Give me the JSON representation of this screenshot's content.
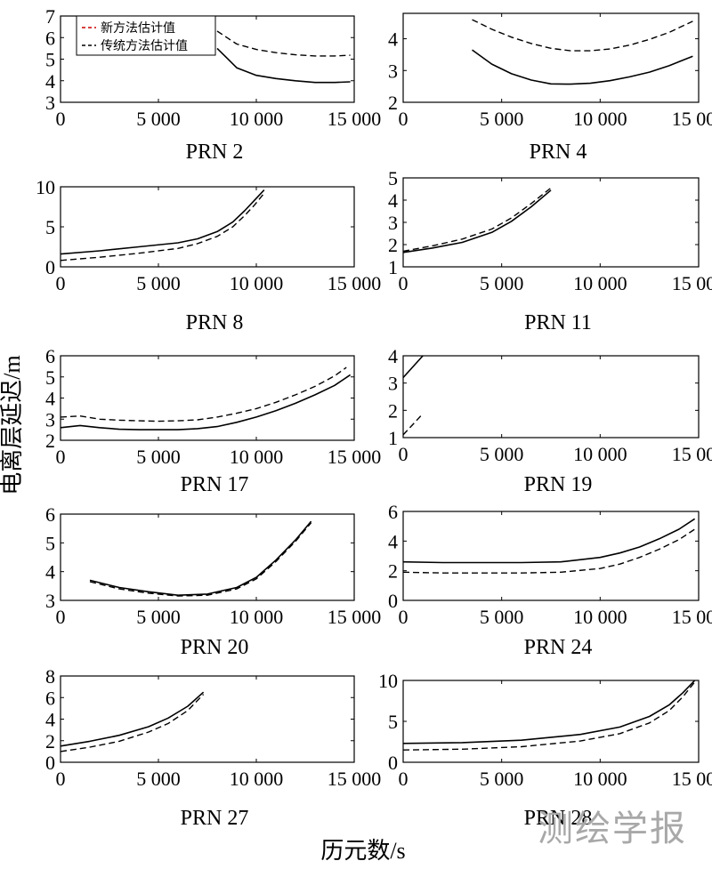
{
  "figure": {
    "ylabel": "电离层延迟/m",
    "xlabel": "历元数/s",
    "watermark": "测绘学报"
  },
  "legend": {
    "items": [
      {
        "label": "新方法估计值",
        "color": "#cc0000",
        "dash": "dashed"
      },
      {
        "label": "传统方法估计值",
        "color": "#000000",
        "dash": "dashed"
      }
    ]
  },
  "chart_data": [
    {
      "type": "line",
      "title": "PRN 2",
      "xlim": [
        0,
        15000
      ],
      "ylim": [
        3,
        7
      ],
      "xticks": [
        0,
        5000,
        10000,
        15000
      ],
      "xtick_labels": [
        "0",
        "5 000",
        "10 000",
        "15 000"
      ],
      "yticks": [
        3,
        4,
        5,
        6,
        7
      ],
      "ytick_labels": [
        "3",
        "4",
        "5",
        "6",
        "7"
      ],
      "legend": true,
      "series": [
        {
          "name": "新方法估计值",
          "style": "solid",
          "x": [
            8000,
            9000,
            10000,
            11000,
            12000,
            13000,
            14000,
            14800
          ],
          "y": [
            5.5,
            4.6,
            4.25,
            4.1,
            4.0,
            3.92,
            3.92,
            3.95
          ]
        },
        {
          "name": "传统方法估计值",
          "style": "dashed",
          "x": [
            8000,
            9000,
            10000,
            11000,
            12000,
            13000,
            14000,
            14800
          ],
          "y": [
            6.3,
            5.7,
            5.45,
            5.3,
            5.2,
            5.15,
            5.15,
            5.18
          ]
        }
      ]
    },
    {
      "type": "line",
      "title": "PRN 4",
      "xlim": [
        0,
        15000
      ],
      "ylim": [
        2,
        4.8
      ],
      "xticks": [
        0,
        5000,
        10000,
        15000
      ],
      "xtick_labels": [
        "0",
        "5 000",
        "10 000",
        "15 000"
      ],
      "yticks": [
        2,
        3,
        4
      ],
      "ytick_labels": [
        "2",
        "3",
        "4"
      ],
      "legend": false,
      "series": [
        {
          "name": "新方法估计值",
          "style": "solid",
          "x": [
            3500,
            4500,
            5500,
            6500,
            7500,
            8500,
            9500,
            10500,
            11500,
            12500,
            13500,
            14700
          ],
          "y": [
            3.65,
            3.2,
            2.9,
            2.7,
            2.58,
            2.57,
            2.6,
            2.68,
            2.8,
            2.95,
            3.15,
            3.45
          ]
        },
        {
          "name": "传统方法估计值",
          "style": "dashed",
          "x": [
            3500,
            4500,
            5500,
            6500,
            7500,
            8500,
            9500,
            10500,
            11500,
            12500,
            13500,
            14700
          ],
          "y": [
            4.6,
            4.3,
            4.05,
            3.85,
            3.7,
            3.62,
            3.62,
            3.68,
            3.8,
            3.98,
            4.2,
            4.55
          ]
        }
      ]
    },
    {
      "type": "line",
      "title": "PRN 8",
      "xlim": [
        0,
        15000
      ],
      "ylim": [
        0,
        10
      ],
      "xticks": [
        0,
        5000,
        10000,
        15000
      ],
      "xtick_labels": [
        "0",
        "5 000",
        "10 000",
        "15 000"
      ],
      "yticks": [
        0,
        5,
        10
      ],
      "ytick_labels": [
        "0",
        "5",
        "10"
      ],
      "legend": false,
      "series": [
        {
          "name": "新方法估计值",
          "style": "solid",
          "x": [
            0,
            2000,
            4000,
            6000,
            7000,
            8000,
            8800,
            9400,
            9900,
            10400
          ],
          "y": [
            1.6,
            2.0,
            2.5,
            3.0,
            3.5,
            4.4,
            5.6,
            7.0,
            8.3,
            9.6
          ]
        },
        {
          "name": "传统方法估计值",
          "style": "dashed",
          "x": [
            0,
            2000,
            4000,
            6000,
            7000,
            8000,
            8800,
            9400,
            9900,
            10400
          ],
          "y": [
            0.8,
            1.2,
            1.7,
            2.3,
            2.9,
            3.8,
            5.0,
            6.4,
            7.7,
            9.2
          ]
        }
      ]
    },
    {
      "type": "line",
      "title": "PRN 11",
      "xlim": [
        0,
        15000
      ],
      "ylim": [
        1,
        5
      ],
      "xticks": [
        0,
        5000,
        10000,
        15000
      ],
      "xtick_labels": [
        "0",
        "5 000",
        "10 000",
        "15 000"
      ],
      "yticks": [
        1,
        2,
        3,
        4,
        5
      ],
      "ytick_labels": [
        "1",
        "2",
        "3",
        "4",
        "5"
      ],
      "legend": false,
      "series": [
        {
          "name": "新方法估计值",
          "style": "solid",
          "x": [
            0,
            1500,
            3000,
            4500,
            5500,
            6500,
            7500
          ],
          "y": [
            1.65,
            1.85,
            2.1,
            2.55,
            3.05,
            3.7,
            4.45
          ]
        },
        {
          "name": "传统方法估计值",
          "style": "dashed",
          "x": [
            0,
            1500,
            3000,
            4500,
            5500,
            6500,
            7500
          ],
          "y": [
            1.7,
            1.95,
            2.25,
            2.7,
            3.2,
            3.85,
            4.55
          ]
        }
      ]
    },
    {
      "type": "line",
      "title": "PRN 17",
      "xlim": [
        0,
        15000
      ],
      "ylim": [
        2,
        6
      ],
      "xticks": [
        0,
        5000,
        10000,
        15000
      ],
      "xtick_labels": [
        "0",
        "5 000",
        "10 000",
        "15 000"
      ],
      "yticks": [
        2,
        3,
        4,
        5,
        6
      ],
      "ytick_labels": [
        "2",
        "3",
        "4",
        "5",
        "6"
      ],
      "legend": false,
      "series": [
        {
          "name": "新方法估计值",
          "style": "solid",
          "x": [
            0,
            1000,
            2000,
            3000,
            4000,
            5000,
            6000,
            7000,
            8000,
            9000,
            10000,
            11000,
            12000,
            13000,
            14000,
            14800
          ],
          "y": [
            2.6,
            2.7,
            2.6,
            2.52,
            2.5,
            2.5,
            2.5,
            2.55,
            2.65,
            2.85,
            3.1,
            3.4,
            3.75,
            4.15,
            4.6,
            5.1
          ]
        },
        {
          "name": "传统方法估计值",
          "style": "dashed",
          "x": [
            0,
            1000,
            2000,
            3000,
            4000,
            5000,
            6000,
            7000,
            8000,
            9000,
            10000,
            11000,
            12000,
            13000,
            14000,
            14600
          ],
          "y": [
            3.1,
            3.15,
            3.0,
            2.95,
            2.92,
            2.9,
            2.92,
            2.97,
            3.1,
            3.28,
            3.5,
            3.8,
            4.15,
            4.55,
            5.05,
            5.45
          ]
        }
      ]
    },
    {
      "type": "line",
      "title": "PRN 19",
      "xlim": [
        0,
        15000
      ],
      "ylim": [
        1,
        4
      ],
      "xticks": [
        0,
        5000,
        10000,
        15000
      ],
      "xtick_labels": [
        "0",
        "5 000",
        "10 000",
        "15 000"
      ],
      "yticks": [
        1,
        2,
        3,
        4
      ],
      "ytick_labels": [
        "1",
        "2",
        "3",
        "4"
      ],
      "legend": false,
      "series": [
        {
          "name": "新方法估计值",
          "style": "solid",
          "x": [
            0,
            1000
          ],
          "y": [
            3.2,
            4.0
          ]
        },
        {
          "name": "传统方法估计值",
          "style": "dashed",
          "x": [
            0,
            900
          ],
          "y": [
            1.1,
            1.8
          ]
        }
      ]
    },
    {
      "type": "line",
      "title": "PRN 20",
      "xlim": [
        0,
        15000
      ],
      "ylim": [
        3,
        6
      ],
      "xticks": [
        0,
        5000,
        10000,
        15000
      ],
      "xtick_labels": [
        "0",
        "5 000",
        "10 000",
        "15 000"
      ],
      "yticks": [
        3,
        4,
        5,
        6
      ],
      "ytick_labels": [
        "3",
        "4",
        "5",
        "6"
      ],
      "legend": false,
      "series": [
        {
          "name": "新方法估计值",
          "style": "solid",
          "x": [
            1500,
            3000,
            4500,
            6000,
            7500,
            9000,
            10000,
            11000,
            12000,
            12800
          ],
          "y": [
            3.7,
            3.45,
            3.3,
            3.18,
            3.22,
            3.45,
            3.8,
            4.4,
            5.1,
            5.75
          ]
        },
        {
          "name": "传统方法估计值",
          "style": "dashed",
          "x": [
            1500,
            3000,
            4500,
            6000,
            7500,
            9000,
            10000,
            11000,
            12000,
            12800
          ],
          "y": [
            3.65,
            3.4,
            3.25,
            3.15,
            3.18,
            3.4,
            3.75,
            4.35,
            5.05,
            5.7
          ]
        }
      ]
    },
    {
      "type": "line",
      "title": "PRN 24",
      "xlim": [
        0,
        15000
      ],
      "ylim": [
        0,
        6
      ],
      "xticks": [
        0,
        5000,
        10000,
        15000
      ],
      "xtick_labels": [
        "0",
        "5 000",
        "10 000",
        "15 000"
      ],
      "yticks": [
        0,
        2,
        4,
        6
      ],
      "ytick_labels": [
        "0",
        "2",
        "4",
        "6"
      ],
      "legend": false,
      "series": [
        {
          "name": "新方法估计值",
          "style": "solid",
          "x": [
            0,
            2000,
            4000,
            6000,
            8000,
            10000,
            11000,
            12000,
            13000,
            14000,
            14800
          ],
          "y": [
            2.6,
            2.55,
            2.55,
            2.55,
            2.6,
            2.9,
            3.2,
            3.6,
            4.15,
            4.8,
            5.5
          ]
        },
        {
          "name": "传统方法估计值",
          "style": "dashed",
          "x": [
            0,
            2000,
            4000,
            6000,
            8000,
            10000,
            11000,
            12000,
            13000,
            14000,
            14800
          ],
          "y": [
            1.9,
            1.85,
            1.85,
            1.85,
            1.9,
            2.15,
            2.45,
            2.9,
            3.45,
            4.1,
            4.8
          ]
        }
      ]
    },
    {
      "type": "line",
      "title": "PRN 27",
      "xlim": [
        0,
        15000
      ],
      "ylim": [
        0,
        8
      ],
      "xticks": [
        0,
        5000,
        10000,
        15000
      ],
      "xtick_labels": [
        "0",
        "5 000",
        "10 000",
        "15 000"
      ],
      "yticks": [
        0,
        2,
        4,
        6,
        8
      ],
      "ytick_labels": [
        "0",
        "2",
        "4",
        "6",
        "8"
      ],
      "legend": false,
      "series": [
        {
          "name": "新方法估计值",
          "style": "solid",
          "x": [
            0,
            1500,
            3000,
            4500,
            5500,
            6500,
            7300
          ],
          "y": [
            1.5,
            1.95,
            2.5,
            3.3,
            4.1,
            5.2,
            6.5
          ]
        },
        {
          "name": "传统方法估计值",
          "style": "dashed",
          "x": [
            0,
            1500,
            3000,
            4500,
            5500,
            6500,
            7300
          ],
          "y": [
            1.0,
            1.4,
            1.95,
            2.8,
            3.6,
            4.8,
            6.3
          ]
        }
      ]
    },
    {
      "type": "line",
      "title": "PRN 28",
      "xlim": [
        0,
        15000
      ],
      "ylim": [
        0,
        10
      ],
      "xticks": [
        0,
        5000,
        10000,
        15000
      ],
      "xtick_labels": [
        "0",
        "5 000",
        "10 000",
        "15 000"
      ],
      "yticks": [
        0,
        5,
        10
      ],
      "ytick_labels": [
        "0",
        "5",
        "10"
      ],
      "legend": false,
      "series": [
        {
          "name": "新方法估计值",
          "style": "solid",
          "x": [
            0,
            3000,
            6000,
            9000,
            11000,
            12500,
            13500,
            14200,
            14800
          ],
          "y": [
            2.3,
            2.4,
            2.7,
            3.4,
            4.3,
            5.6,
            7.0,
            8.5,
            10.0
          ]
        },
        {
          "name": "传统方法估计值",
          "style": "dashed",
          "x": [
            0,
            3000,
            6000,
            9000,
            11000,
            12500,
            13500,
            14200,
            14800
          ],
          "y": [
            1.5,
            1.6,
            1.9,
            2.6,
            3.5,
            4.8,
            6.3,
            8.0,
            9.8
          ]
        }
      ]
    }
  ]
}
